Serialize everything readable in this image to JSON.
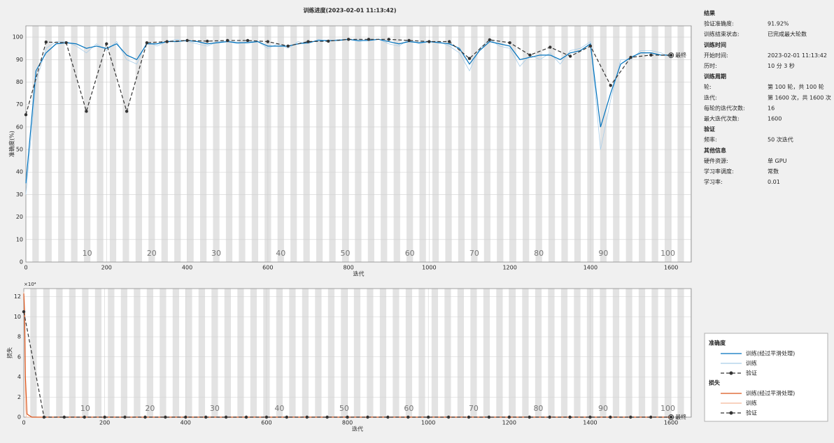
{
  "title": "训练进度(2023-02-01 11:13:42)",
  "chart_data": [
    {
      "type": "line",
      "legend_title": "准确度",
      "xlabel": "迭代",
      "ylabel": "准确度(%)",
      "xlim": [
        0,
        1650
      ],
      "ylim": [
        0,
        105
      ],
      "xticks": [
        0,
        200,
        400,
        600,
        800,
        1000,
        1200,
        1400,
        1600
      ],
      "yticks": [
        0,
        10,
        20,
        30,
        40,
        50,
        60,
        70,
        80,
        90,
        100
      ],
      "grid": true,
      "epoch_labels": [
        {
          "value": 152,
          "label": "10"
        },
        {
          "value": 312,
          "label": "20"
        },
        {
          "value": 472,
          "label": "30"
        },
        {
          "value": 632,
          "label": "40"
        },
        {
          "value": 792,
          "label": "50"
        },
        {
          "value": 952,
          "label": "60"
        },
        {
          "value": 1112,
          "label": "70"
        },
        {
          "value": 1272,
          "label": "80"
        },
        {
          "value": 1432,
          "label": "90"
        },
        {
          "value": 1592,
          "label": "100"
        }
      ],
      "final_label": "最终",
      "series": [
        {
          "name": "训练(经过平滑处理)",
          "color": "#0072bd",
          "style": "solid",
          "marker": false,
          "x": [
            0,
            25,
            50,
            75,
            100,
            125,
            150,
            175,
            200,
            225,
            250,
            275,
            300,
            325,
            350,
            375,
            400,
            425,
            450,
            475,
            500,
            525,
            550,
            575,
            600,
            625,
            650,
            675,
            700,
            725,
            750,
            775,
            800,
            825,
            850,
            875,
            900,
            925,
            950,
            975,
            1000,
            1025,
            1050,
            1075,
            1100,
            1125,
            1150,
            1175,
            1200,
            1225,
            1250,
            1275,
            1300,
            1325,
            1350,
            1375,
            1400,
            1425,
            1450,
            1475,
            1500,
            1525,
            1550,
            1575,
            1600
          ],
          "values": [
            35,
            85,
            93,
            97,
            97.5,
            97,
            95,
            96,
            95,
            97,
            92,
            90,
            97,
            97,
            98,
            98,
            98.5,
            98,
            97,
            97.5,
            98,
            97.5,
            97.5,
            98,
            96,
            96,
            96,
            97,
            97.5,
            98.5,
            98.5,
            98.5,
            99,
            98.5,
            98.5,
            99,
            98,
            97,
            98,
            97.5,
            98,
            97.5,
            97,
            95,
            88,
            94,
            98,
            97,
            96,
            90,
            91,
            92,
            92,
            90,
            93,
            94,
            97,
            60,
            75,
            88,
            91,
            93,
            93,
            92,
            92
          ]
        },
        {
          "name": "训练",
          "color": "#a9cde8",
          "style": "solid",
          "marker": false,
          "x": [
            0,
            25,
            50,
            75,
            100,
            125,
            150,
            175,
            200,
            225,
            250,
            275,
            300,
            325,
            350,
            375,
            400,
            425,
            450,
            475,
            500,
            525,
            550,
            575,
            600,
            625,
            650,
            675,
            700,
            725,
            750,
            775,
            800,
            825,
            850,
            875,
            900,
            925,
            950,
            975,
            1000,
            1025,
            1050,
            1075,
            1100,
            1125,
            1150,
            1175,
            1200,
            1225,
            1250,
            1275,
            1300,
            1325,
            1350,
            1375,
            1400,
            1425,
            1450,
            1475,
            1500,
            1525,
            1550,
            1575,
            1600
          ],
          "values": [
            30,
            80,
            95,
            98,
            98,
            96,
            93,
            97,
            94,
            98,
            90,
            88,
            98,
            96,
            98,
            99,
            98,
            97,
            96,
            98,
            98,
            97,
            98,
            98,
            95,
            97,
            95,
            98,
            97,
            99,
            98,
            99,
            99,
            98,
            99,
            99,
            97,
            96,
            99,
            97,
            98,
            98,
            96,
            93,
            85,
            95,
            99,
            96,
            95,
            87,
            92,
            90,
            93,
            88,
            94,
            95,
            98,
            50,
            72,
            90,
            90,
            94,
            94,
            93,
            91
          ]
        },
        {
          "name": "验证",
          "color": "#333333",
          "style": "dashed",
          "marker": true,
          "x": [
            0,
            50,
            100,
            150,
            200,
            250,
            300,
            350,
            400,
            450,
            500,
            550,
            600,
            650,
            700,
            750,
            800,
            850,
            900,
            950,
            1000,
            1050,
            1100,
            1150,
            1200,
            1250,
            1300,
            1350,
            1400,
            1450,
            1500,
            1550,
            1600
          ],
          "values": [
            65.5,
            97.8,
            97.5,
            67,
            97,
            67,
            97.5,
            98,
            98.5,
            98.2,
            98.5,
            98.5,
            98,
            96,
            98,
            98.2,
            99,
            99,
            99,
            98.5,
            98,
            98,
            90.5,
            98.8,
            97.5,
            92,
            95.5,
            91.5,
            96,
            78.5,
            91,
            92,
            91.92
          ]
        }
      ]
    },
    {
      "type": "line",
      "legend_title": "损失",
      "xlabel": "迭代",
      "ylabel": "损失",
      "y_exponent": "×10⁴",
      "xlim": [
        0,
        1650
      ],
      "ylim": [
        0,
        12.8
      ],
      "xticks": [
        0,
        200,
        400,
        600,
        800,
        1000,
        1200,
        1400,
        1600
      ],
      "yticks": [
        0,
        2,
        4,
        6,
        8,
        10,
        12
      ],
      "grid": true,
      "epoch_labels": [
        {
          "value": 152,
          "label": "10"
        },
        {
          "value": 312,
          "label": "20"
        },
        {
          "value": 472,
          "label": "30"
        },
        {
          "value": 632,
          "label": "40"
        },
        {
          "value": 792,
          "label": "50"
        },
        {
          "value": 952,
          "label": "60"
        },
        {
          "value": 1112,
          "label": "70"
        },
        {
          "value": 1272,
          "label": "80"
        },
        {
          "value": 1432,
          "label": "90"
        },
        {
          "value": 1592,
          "label": "100"
        }
      ],
      "final_label": "最终",
      "series": [
        {
          "name": "训练(经过平滑处理)",
          "color": "#d95319",
          "style": "solid",
          "marker": false,
          "x": [
            0,
            2,
            4,
            8,
            20,
            1600
          ],
          "values": [
            12.3,
            10.5,
            4,
            0.3,
            0,
            0
          ]
        },
        {
          "name": "训练",
          "color": "#f4b899",
          "style": "solid",
          "marker": false,
          "x": [
            0,
            2,
            4,
            6,
            1600
          ],
          "values": [
            12.5,
            9,
            1,
            0,
            0
          ]
        },
        {
          "name": "验证",
          "color": "#333333",
          "style": "dashed",
          "marker": true,
          "x": [
            0,
            50,
            100,
            150,
            200,
            250,
            300,
            350,
            400,
            450,
            500,
            550,
            600,
            650,
            700,
            750,
            800,
            850,
            900,
            950,
            1000,
            1050,
            1100,
            1150,
            1200,
            1250,
            1300,
            1350,
            1400,
            1450,
            1500,
            1550,
            1600
          ],
          "values": [
            10.5,
            0,
            0,
            0,
            0,
            0,
            0,
            0,
            0,
            0,
            0,
            0,
            0,
            0,
            0,
            0,
            0,
            0,
            0,
            0,
            0,
            0,
            0,
            0,
            0,
            0,
            0,
            0,
            0,
            0,
            0,
            0,
            0
          ]
        }
      ]
    }
  ],
  "info": [
    {
      "heading": "结果",
      "rows": [
        [
          "验证准确度:",
          "91.92%"
        ],
        [
          "训练结束状态:",
          "已完成最大轮数"
        ]
      ]
    },
    {
      "heading": "训练时间",
      "rows": [
        [
          "开始时间:",
          "2023-02-01 11:13:42"
        ],
        [
          "历时:",
          "10 分 3 秒"
        ]
      ]
    },
    {
      "heading": "训练周期",
      "rows": [
        [
          "轮:",
          "第 100 轮，共 100 轮"
        ],
        [
          "迭代:",
          "第 1600 次，共 1600 次"
        ],
        [
          "每轮的迭代次数:",
          "16"
        ],
        [
          "最大迭代次数:",
          "1600"
        ]
      ]
    },
    {
      "heading": "验证",
      "rows": [
        [
          "频率:",
          "50 次迭代"
        ]
      ]
    },
    {
      "heading": "其他信息",
      "rows": [
        [
          "硬件资源:",
          "单 GPU"
        ],
        [
          "学习率调度:",
          "常数"
        ],
        [
          "学习率:",
          "0.01"
        ]
      ]
    }
  ]
}
